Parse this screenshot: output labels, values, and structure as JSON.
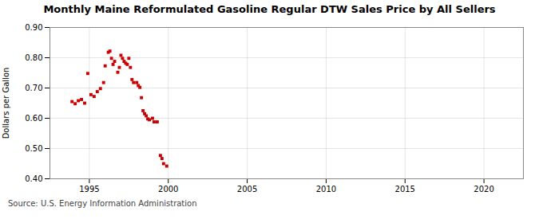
{
  "chart_data": {
    "type": "scatter",
    "title": "Monthly Maine Reformulated Gasoline Regular DTW Sales Price by All Sellers",
    "ylabel": "Dollars per Gallon",
    "source": "Source: U.S. Energy Information Administration",
    "color": "#cc0000",
    "marker": "square",
    "grid": true,
    "xlim": [
      1992.5,
      2022.5
    ],
    "ylim": [
      0.4,
      0.9
    ],
    "xticks": [
      1995,
      2000,
      2005,
      2010,
      2015,
      2020
    ],
    "yticks": [
      {
        "value": 0.4,
        "label": "0.40"
      },
      {
        "value": 0.5,
        "label": "0.50"
      },
      {
        "value": 0.6,
        "label": "0.60"
      },
      {
        "value": 0.7,
        "label": "0.70"
      },
      {
        "value": 0.8,
        "label": "0.80"
      },
      {
        "value": 0.9,
        "label": "0.90"
      }
    ],
    "x": [
      1993.9,
      1994.1,
      1994.3,
      1994.5,
      1994.7,
      1994.9,
      1995.1,
      1995.3,
      1995.5,
      1995.7,
      1995.9,
      1996.0,
      1996.2,
      1996.3,
      1996.4,
      1996.5,
      1996.6,
      1996.8,
      1996.9,
      1997.0,
      1997.1,
      1997.2,
      1997.3,
      1997.4,
      1997.5,
      1997.6,
      1997.7,
      1997.8,
      1998.0,
      1998.1,
      1998.2,
      1998.3,
      1998.4,
      1998.5,
      1998.6,
      1998.7,
      1998.8,
      1999.0,
      1999.1,
      1999.3,
      1999.5,
      1999.6,
      1999.7,
      1999.9
    ],
    "values": [
      0.655,
      0.648,
      0.658,
      0.662,
      0.65,
      0.748,
      0.678,
      0.672,
      0.688,
      0.698,
      0.718,
      0.773,
      0.818,
      0.822,
      0.798,
      0.778,
      0.788,
      0.752,
      0.768,
      0.808,
      0.798,
      0.788,
      0.782,
      0.778,
      0.798,
      0.768,
      0.728,
      0.718,
      0.718,
      0.708,
      0.702,
      0.668,
      0.625,
      0.615,
      0.608,
      0.598,
      0.595,
      0.6,
      0.588,
      0.588,
      0.477,
      0.467,
      0.45,
      0.442
    ]
  }
}
